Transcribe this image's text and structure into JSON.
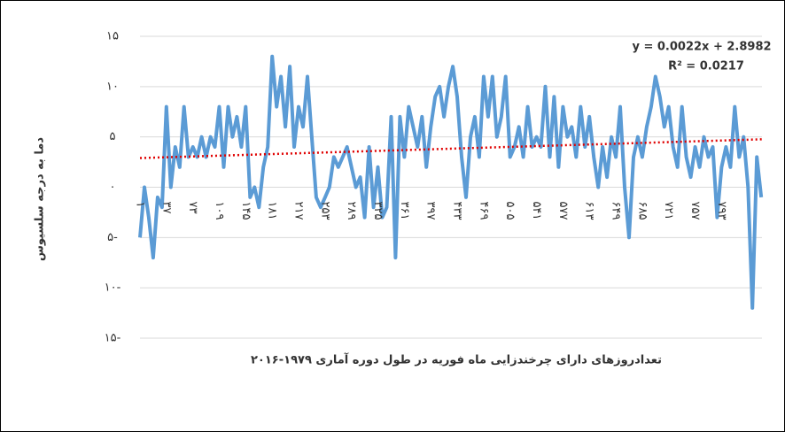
{
  "chart_data": {
    "type": "line",
    "x_label": "تعدادروزهای دارای چرخندزایی ماه فوریه در طول دوره آماری ۱۹۷۹-۲۰۱۶",
    "y_label": "دما به درجه سلسیوس",
    "annotations": [
      "y = 0.0022x + 2.8982",
      "R² = 0.0217"
    ],
    "trendline": {
      "slope": 0.0022,
      "intercept": 2.8982,
      "color": "#e00000"
    },
    "x": [
      1,
      7,
      13,
      19,
      25,
      31,
      37,
      43,
      49,
      55,
      61,
      67,
      73,
      79,
      85,
      91,
      97,
      103,
      109,
      115,
      121,
      127,
      133,
      139,
      145,
      151,
      157,
      163,
      169,
      175,
      181,
      187,
      193,
      199,
      205,
      211,
      217,
      223,
      229,
      235,
      241,
      247,
      253,
      259,
      265,
      271,
      277,
      283,
      289,
      295,
      301,
      307,
      313,
      319,
      325,
      331,
      337,
      343,
      349,
      355,
      361,
      367,
      373,
      379,
      385,
      391,
      397,
      403,
      409,
      415,
      421,
      427,
      433,
      439,
      445,
      451,
      457,
      463,
      469,
      475,
      481,
      487,
      493,
      499,
      505,
      511,
      517,
      523,
      529,
      535,
      541,
      547,
      553,
      559,
      565,
      571,
      577,
      583,
      589,
      595,
      601,
      607,
      613,
      619,
      625,
      631,
      637,
      643,
      649,
      655,
      661,
      667,
      673,
      679,
      685,
      691,
      697,
      703,
      709,
      715,
      721,
      727,
      733,
      739,
      745,
      751,
      757,
      763,
      769,
      775,
      781,
      787,
      793,
      799,
      805,
      811,
      817,
      823,
      829,
      835,
      841,
      847
    ],
    "series": [
      {
        "color": "#5b9bd5",
        "values": [
          -5,
          0,
          -3,
          -7,
          -1,
          -2,
          8,
          0,
          4,
          2,
          8,
          3,
          4,
          3,
          5,
          3,
          5,
          4,
          8,
          2,
          8,
          5,
          7,
          4,
          8,
          -1,
          0,
          -2,
          2,
          4,
          13,
          8,
          11,
          6,
          12,
          4,
          8,
          6,
          11,
          5,
          -1,
          -2,
          -1,
          0,
          3,
          2,
          3,
          4,
          2,
          0,
          1,
          -3,
          4,
          -2,
          2,
          -3,
          -2,
          7,
          -7,
          7,
          3,
          8,
          6,
          4,
          7,
          2,
          6,
          9,
          10,
          7,
          10,
          12,
          9,
          3,
          -1,
          5,
          7,
          3,
          11,
          7,
          11,
          5,
          7,
          11,
          3,
          4,
          6,
          3,
          8,
          4,
          5,
          4,
          10,
          3,
          9,
          2,
          8,
          5,
          6,
          3,
          8,
          4,
          7,
          3,
          0,
          4,
          1,
          5,
          3,
          8,
          0,
          -5,
          3,
          5,
          3,
          6,
          8,
          11,
          9,
          6,
          8,
          4,
          2,
          8,
          3,
          1,
          4,
          2,
          5,
          3,
          4,
          -3,
          2,
          4,
          2,
          8,
          3,
          5,
          0,
          -12,
          3,
          -1
        ]
      }
    ],
    "xlim": [
      1,
      848
    ],
    "xticks": [
      {
        "value": 1,
        "label": "۱"
      },
      {
        "value": 37,
        "label": "۳۷"
      },
      {
        "value": 73,
        "label": "۷۳"
      },
      {
        "value": 109,
        "label": "۱۰۹"
      },
      {
        "value": 145,
        "label": "۱۴۵"
      },
      {
        "value": 181,
        "label": "۱۸۱"
      },
      {
        "value": 217,
        "label": "۲۱۷"
      },
      {
        "value": 253,
        "label": "۲۵۳"
      },
      {
        "value": 289,
        "label": "۲۸۹"
      },
      {
        "value": 325,
        "label": "۳۲۵"
      },
      {
        "value": 361,
        "label": "۳۶۱"
      },
      {
        "value": 397,
        "label": "۳۹۷"
      },
      {
        "value": 433,
        "label": "۴۳۳"
      },
      {
        "value": 469,
        "label": "۴۶۹"
      },
      {
        "value": 505,
        "label": "۵۰۵"
      },
      {
        "value": 541,
        "label": "۵۴۱"
      },
      {
        "value": 577,
        "label": "۵۷۷"
      },
      {
        "value": 613,
        "label": "۶۱۳"
      },
      {
        "value": 649,
        "label": "۶۴۹"
      },
      {
        "value": 685,
        "label": "۶۸۵"
      },
      {
        "value": 721,
        "label": "۷۲۱"
      },
      {
        "value": 757,
        "label": "۷۵۷"
      },
      {
        "value": 793,
        "label": "۷۹۳"
      }
    ],
    "ylim": [
      -15,
      15
    ],
    "yticks": [
      {
        "value": 15,
        "label": "۱۵"
      },
      {
        "value": 10,
        "label": "۱۰"
      },
      {
        "value": 5,
        "label": "۵"
      },
      {
        "value": 0,
        "label": "۰"
      },
      {
        "value": -5,
        "label": "۵-"
      },
      {
        "value": -10,
        "label": "۱۰-"
      },
      {
        "value": -15,
        "label": "۱۵-"
      }
    ],
    "grid": true
  }
}
